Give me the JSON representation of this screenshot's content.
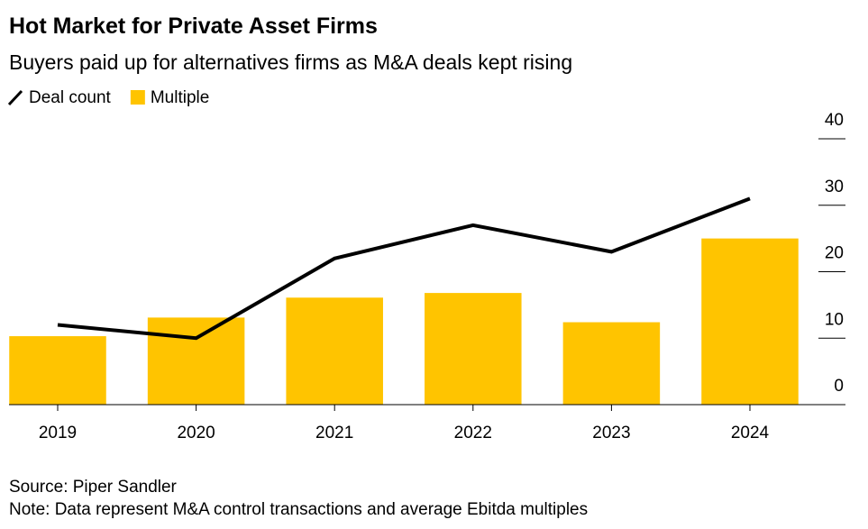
{
  "chart_data": {
    "type": "bar",
    "title": "Hot Market for Private Asset Firms",
    "subtitle": "Buyers paid up for alternatives firms as M&A deals kept rising",
    "categories": [
      "2019",
      "2020",
      "2021",
      "2022",
      "2023",
      "2024"
    ],
    "series": [
      {
        "name": "Deal count",
        "type": "line",
        "color": "#000000",
        "values": [
          12,
          10,
          22,
          27,
          23,
          31
        ]
      },
      {
        "name": "Multiple",
        "type": "bar",
        "color": "#ffc400",
        "values": [
          10.3,
          13.1,
          16.1,
          16.8,
          12.4,
          25.0
        ]
      }
    ],
    "ylim": [
      0,
      40
    ],
    "yticks": [
      0,
      10,
      20,
      30,
      40
    ],
    "source": "Source: Piper Sandler",
    "note": "Note: Data represent M&A control transactions and average Ebitda multiples"
  }
}
